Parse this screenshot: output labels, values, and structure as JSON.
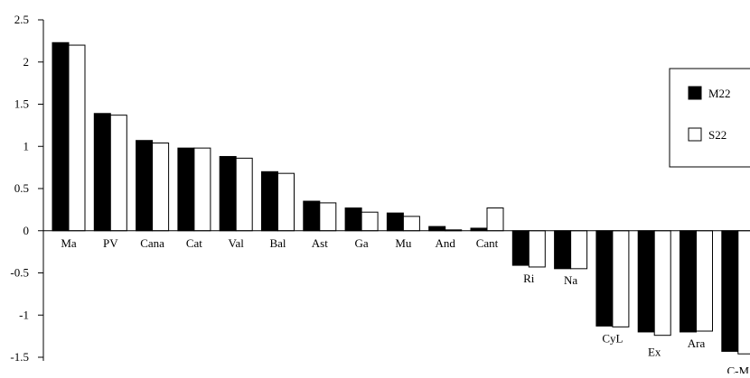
{
  "chart_data": {
    "type": "bar",
    "title": "",
    "xlabel": "",
    "ylabel": "",
    "ylim": [
      -1.5,
      2.5
    ],
    "yticks": [
      2.5,
      2,
      1.5,
      1,
      0.5,
      0,
      -0.5,
      -1,
      -1.5
    ],
    "ytick_labels": [
      "2.5",
      "2",
      "1.5",
      "1",
      "0.5",
      "0",
      "-0.5",
      "-1",
      "-1.5"
    ],
    "grid": false,
    "legend_position": "right",
    "categories": [
      "Ma",
      "PV",
      "Cana",
      "Cat",
      "Val",
      "Bal",
      "Ast",
      "Ga",
      "Mu",
      "And",
      "Cant",
      "Ri",
      "Na",
      "CyL",
      "Ex",
      "Ara",
      "C-M"
    ],
    "series": [
      {
        "name": "M22",
        "fill": "#000000",
        "values": [
          2.23,
          1.39,
          1.07,
          0.98,
          0.88,
          0.7,
          0.35,
          0.27,
          0.21,
          0.05,
          0.03,
          -0.41,
          -0.45,
          -1.13,
          -1.2,
          -1.2,
          -1.43
        ]
      },
      {
        "name": "S22",
        "fill": "#ffffff",
        "values": [
          2.2,
          1.37,
          1.04,
          0.98,
          0.86,
          0.68,
          0.33,
          0.22,
          0.17,
          0.01,
          0.27,
          -0.43,
          -0.45,
          -1.14,
          -1.24,
          -1.19,
          -1.46
        ]
      }
    ]
  }
}
